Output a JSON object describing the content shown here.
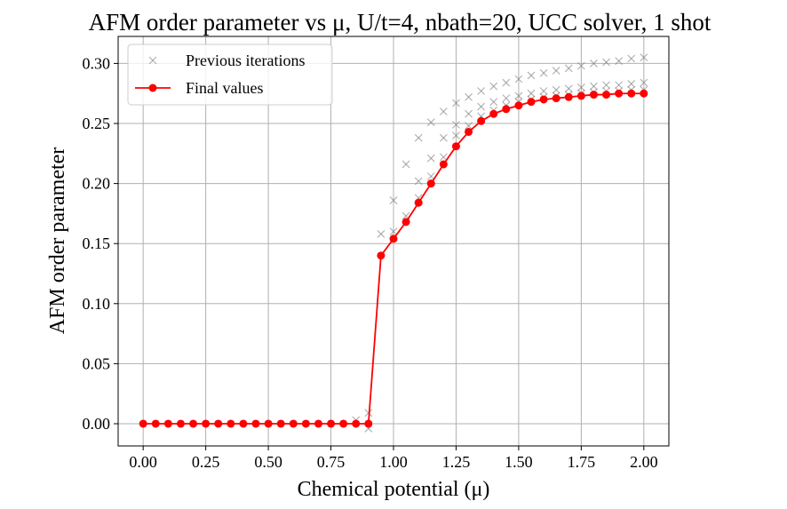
{
  "chart_data": {
    "type": "line",
    "title": "AFM order parameter vs μ, U/t=4, nbath=20, UCC solver, 1 shot",
    "xlabel": "Chemical potential (μ)",
    "ylabel": "AFM order parameter",
    "xlim": [
      -0.1,
      2.1
    ],
    "ylim": [
      -0.0185,
      0.3225
    ],
    "xticks": [
      0.0,
      0.25,
      0.5,
      0.75,
      1.0,
      1.25,
      1.5,
      1.75,
      2.0
    ],
    "xtick_labels": [
      "0.00",
      "0.25",
      "0.50",
      "0.75",
      "1.00",
      "1.25",
      "1.50",
      "1.75",
      "2.00"
    ],
    "yticks": [
      0.0,
      0.05,
      0.1,
      0.15,
      0.2,
      0.25,
      0.3
    ],
    "ytick_labels": [
      "0.00",
      "0.05",
      "0.10",
      "0.15",
      "0.20",
      "0.25",
      "0.30"
    ],
    "grid": true,
    "legend_position": "top-left",
    "colors": {
      "final": "#ff0000",
      "previous": "#808080"
    },
    "series": [
      {
        "name": "Previous iterations",
        "style": "x-markers",
        "points": [
          [
            0.85,
            0.003
          ],
          [
            0.9,
            0.009
          ],
          [
            0.9,
            -0.004
          ],
          [
            0.95,
            0.158
          ],
          [
            1.0,
            0.186
          ],
          [
            1.0,
            0.16
          ],
          [
            1.05,
            0.216
          ],
          [
            1.05,
            0.173
          ],
          [
            1.1,
            0.238
          ],
          [
            1.1,
            0.202
          ],
          [
            1.1,
            0.188
          ],
          [
            1.15,
            0.251
          ],
          [
            1.15,
            0.221
          ],
          [
            1.15,
            0.206
          ],
          [
            1.2,
            0.26
          ],
          [
            1.2,
            0.238
          ],
          [
            1.2,
            0.222
          ],
          [
            1.25,
            0.267
          ],
          [
            1.25,
            0.249
          ],
          [
            1.25,
            0.24
          ],
          [
            1.3,
            0.272
          ],
          [
            1.3,
            0.258
          ],
          [
            1.3,
            0.248
          ],
          [
            1.35,
            0.277
          ],
          [
            1.35,
            0.264
          ],
          [
            1.35,
            0.256
          ],
          [
            1.4,
            0.281
          ],
          [
            1.4,
            0.268
          ],
          [
            1.4,
            0.261
          ],
          [
            1.45,
            0.284
          ],
          [
            1.45,
            0.271
          ],
          [
            1.45,
            0.265
          ],
          [
            1.5,
            0.287
          ],
          [
            1.5,
            0.273
          ],
          [
            1.5,
            0.268
          ],
          [
            1.55,
            0.29
          ],
          [
            1.55,
            0.275
          ],
          [
            1.55,
            0.27
          ],
          [
            1.6,
            0.292
          ],
          [
            1.6,
            0.277
          ],
          [
            1.6,
            0.272
          ],
          [
            1.65,
            0.294
          ],
          [
            1.65,
            0.278
          ],
          [
            1.65,
            0.273
          ],
          [
            1.7,
            0.296
          ],
          [
            1.7,
            0.279
          ],
          [
            1.7,
            0.274
          ],
          [
            1.75,
            0.298
          ],
          [
            1.75,
            0.28
          ],
          [
            1.75,
            0.275
          ],
          [
            1.8,
            0.3
          ],
          [
            1.8,
            0.281
          ],
          [
            1.8,
            0.276
          ],
          [
            1.85,
            0.301
          ],
          [
            1.85,
            0.282
          ],
          [
            1.85,
            0.277
          ],
          [
            1.9,
            0.302
          ],
          [
            1.9,
            0.282
          ],
          [
            1.9,
            0.277
          ],
          [
            1.95,
            0.304
          ],
          [
            1.95,
            0.283
          ],
          [
            1.95,
            0.278
          ],
          [
            2.0,
            0.305
          ],
          [
            2.0,
            0.284
          ],
          [
            2.0,
            0.278
          ]
        ]
      },
      {
        "name": "Final values",
        "style": "line-circle",
        "x": [
          0.0,
          0.05,
          0.1,
          0.15,
          0.2,
          0.25,
          0.3,
          0.35,
          0.4,
          0.45,
          0.5,
          0.55,
          0.6,
          0.65,
          0.7,
          0.75,
          0.8,
          0.85,
          0.9,
          0.95,
          1.0,
          1.05,
          1.1,
          1.15,
          1.2,
          1.25,
          1.3,
          1.35,
          1.4,
          1.45,
          1.5,
          1.55,
          1.6,
          1.65,
          1.7,
          1.75,
          1.8,
          1.85,
          1.9,
          1.95,
          2.0
        ],
        "y": [
          0.0,
          0.0,
          0.0,
          0.0,
          0.0,
          0.0,
          0.0,
          0.0,
          0.0,
          0.0,
          0.0,
          0.0,
          0.0,
          0.0,
          0.0,
          0.0,
          0.0,
          0.0,
          0.0,
          0.14,
          0.154,
          0.168,
          0.184,
          0.2,
          0.216,
          0.231,
          0.243,
          0.252,
          0.258,
          0.262,
          0.265,
          0.268,
          0.27,
          0.271,
          0.272,
          0.273,
          0.274,
          0.274,
          0.275,
          0.275,
          0.275
        ]
      }
    ]
  }
}
